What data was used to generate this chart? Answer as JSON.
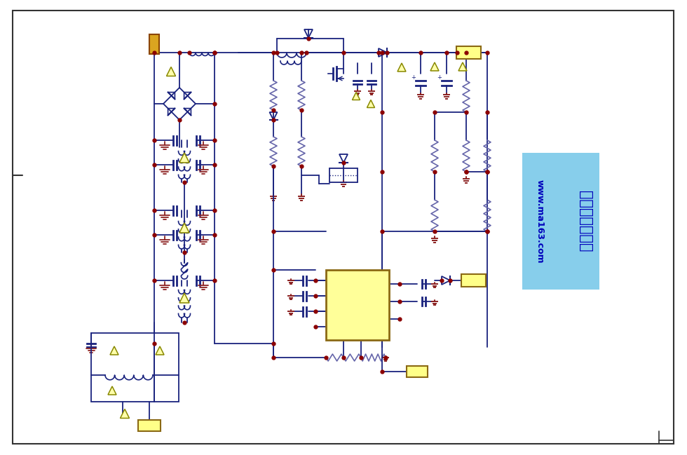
{
  "bg_color": "#ffffff",
  "border_color": "#1a1a2e",
  "wire_color": "#1a237e",
  "dot_color": "#8B0000",
  "resistor_color": "#6666aa",
  "capacitor_color": "#1a237e",
  "ground_color": "#8B2020",
  "triangle_fill": "#FFFFAA",
  "triangle_edge": "#888800",
  "diode_color": "#1a237e",
  "connector_gold": "#DAA520",
  "connector_yellow": "#FFFF88",
  "ic_fill": "#FFFF99",
  "ic_edge": "#8B6914",
  "watermark_bg": "#87CEEB",
  "watermark_text_color": "#0000BB",
  "watermark_line1": "电子技术资料图",
  "watermark_line2": "www.ma163.com"
}
